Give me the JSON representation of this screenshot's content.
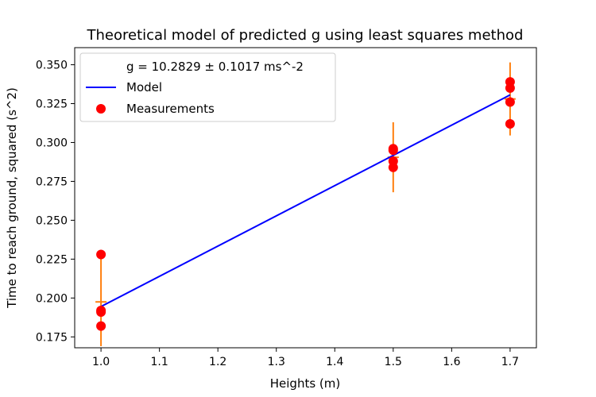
{
  "chart_data": {
    "type": "scatter",
    "title": "Theoretical model of predicted g using least squares method",
    "xlabel": "Heights (m)",
    "ylabel": "Time to reach ground, squared (s^2)",
    "xlim": [
      0.955,
      1.745
    ],
    "ylim": [
      0.168,
      0.361
    ],
    "x_ticks": [
      1.0,
      1.1,
      1.2,
      1.3,
      1.4,
      1.5,
      1.6,
      1.7
    ],
    "x_tick_labels": [
      "1.0",
      "1.1",
      "1.2",
      "1.3",
      "1.4",
      "1.5",
      "1.6",
      "1.7"
    ],
    "y_ticks": [
      0.175,
      0.2,
      0.225,
      0.25,
      0.275,
      0.3,
      0.325,
      0.35
    ],
    "y_tick_labels": [
      "0.175",
      "0.200",
      "0.225",
      "0.250",
      "0.275",
      "0.300",
      "0.325",
      "0.350"
    ],
    "grid": false,
    "legend_position": "top-left",
    "legend": {
      "annotation": "g = 10.2829 ± 0.1017 ms^-2",
      "model_label": "Model",
      "measurements_label": "Measurements"
    },
    "model_line": {
      "x": [
        1.0,
        1.7
      ],
      "y": [
        0.1945,
        0.3306
      ],
      "color": "#0000ff"
    },
    "measurements": {
      "color": "#ff0000",
      "points": [
        {
          "x": 1.0,
          "y": 0.228
        },
        {
          "x": 1.0,
          "y": 0.192
        },
        {
          "x": 1.0,
          "y": 0.191
        },
        {
          "x": 1.0,
          "y": 0.182
        },
        {
          "x": 1.5,
          "y": 0.296
        },
        {
          "x": 1.5,
          "y": 0.295
        },
        {
          "x": 1.5,
          "y": 0.288
        },
        {
          "x": 1.5,
          "y": 0.284
        },
        {
          "x": 1.7,
          "y": 0.339
        },
        {
          "x": 1.7,
          "y": 0.335
        },
        {
          "x": 1.7,
          "y": 0.326
        },
        {
          "x": 1.7,
          "y": 0.312
        }
      ]
    },
    "error_bars": {
      "color": "#ff7f0e",
      "items": [
        {
          "x": 1.0,
          "y": 0.1975,
          "err": 0.0285
        },
        {
          "x": 1.5,
          "y": 0.2905,
          "err": 0.0225
        },
        {
          "x": 1.7,
          "y": 0.328,
          "err": 0.0235
        }
      ]
    }
  }
}
